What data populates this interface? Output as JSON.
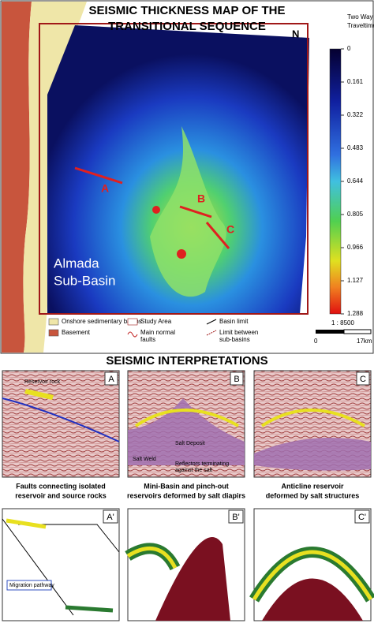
{
  "map": {
    "title": [
      "SEISMIC THICKNESS MAP OF THE",
      "TRANSITIONAL SEQUENCE"
    ],
    "north": "N",
    "section_labels": [
      "A",
      "B",
      "C"
    ],
    "basin_label": [
      "Almada",
      "Sub-Basin"
    ],
    "colorbar": {
      "title": [
        "Two Way",
        "Traveltime (s):"
      ],
      "ticks": [
        0,
        0.161,
        0.322,
        0.483,
        0.644,
        0.805,
        0.966,
        1.127,
        1.288
      ]
    },
    "scale": {
      "ratio": "1 : 8500",
      "start": "0",
      "end": "17km"
    },
    "legend": [
      {
        "lines": [
          "Onshore sedimentary basins"
        ]
      },
      {
        "lines": [
          "Basement"
        ]
      },
      {
        "lines": [
          "Study Area"
        ]
      },
      {
        "lines": [
          "Main normal",
          "faults"
        ]
      },
      {
        "lines": [
          "Basin limit"
        ]
      },
      {
        "lines": [
          "Limit between",
          "sub-basins"
        ]
      }
    ]
  },
  "interpretations": {
    "title": "SEISMIC INTERPRETATIONS",
    "panels": [
      {
        "label": "A",
        "annotations": [
          "Reservoir rock"
        ],
        "caption": [
          "Faults connecting isolated",
          "reservoir and source rocks"
        ],
        "sketch_label": "A'",
        "sketch_annotations": [
          "Migration pathway"
        ]
      },
      {
        "label": "B",
        "annotations": [
          "Salt Deposit",
          "Salt Weld",
          "Reflectors terminating",
          "against the salt"
        ],
        "caption": [
          "Mini-Basin and pinch-out",
          "reservoirs deformed by salt diapirs"
        ],
        "sketch_label": "B'",
        "sketch_annotations": []
      },
      {
        "label": "C",
        "annotations": [],
        "caption": [
          "Anticline reservoir",
          "deformed by salt structures"
        ],
        "sketch_label": "C'",
        "sketch_annotations": []
      }
    ]
  }
}
